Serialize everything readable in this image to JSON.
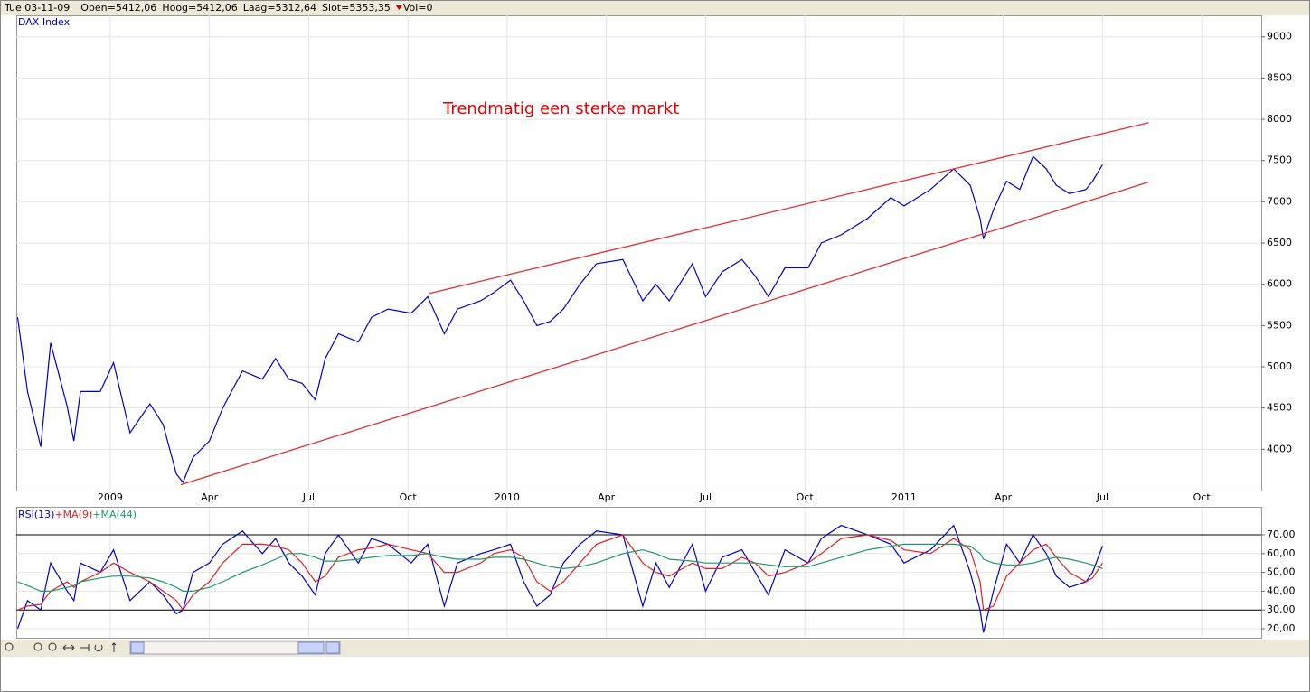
{
  "header": {
    "date": "Tue 03-11-09",
    "open": "Open=5412,06",
    "high": "Hoog=5412,06",
    "low": "Laag=5312,64",
    "close": "Slot=5353,35",
    "volume": "Vol=0"
  },
  "chart_data": [
    {
      "type": "line",
      "annotation": "Trendmatig een sterke markt",
      "x": [
        -2.8,
        -2.5,
        -2.1,
        -1.8,
        -1.3,
        -1.1,
        -0.9,
        -0.3,
        0.1,
        0.6,
        1.2,
        1.6,
        2.0,
        2.2,
        2.5,
        3.0,
        3.4,
        4.0,
        4.6,
        5.0,
        5.4,
        5.8,
        6.2,
        6.5,
        6.9,
        7.5,
        7.9,
        8.4,
        9.1,
        9.6,
        10.1,
        10.5,
        11.2,
        11.6,
        12.1,
        12.5,
        12.9,
        13.3,
        13.7,
        14.2,
        14.7,
        15.5,
        16.1,
        16.5,
        16.9,
        17.6,
        18.0,
        18.5,
        19.1,
        19.5,
        19.9,
        20.4,
        21.1,
        21.5,
        22.1,
        22.9,
        23.6,
        24.0,
        24.8,
        25.5,
        26.0,
        26.3,
        26.4,
        26.7,
        27.1,
        27.5,
        27.9,
        28.3,
        28.6,
        29.0,
        29.5,
        29.7,
        30.0
      ],
      "series": [
        {
          "name": "DAX Index",
          "color": "#0000c8",
          "values": [
            5600,
            4700,
            4030,
            5290,
            4520,
            4100,
            4700,
            4700,
            5050,
            4200,
            4550,
            4300,
            3700,
            3600,
            3900,
            4100,
            4500,
            4950,
            4850,
            5100,
            4850,
            4800,
            4600,
            5100,
            5400,
            5300,
            5600,
            5700,
            5650,
            5850,
            5400,
            5700,
            5800,
            5900,
            6050,
            5800,
            5500,
            5550,
            5700,
            6000,
            6250,
            6300,
            5800,
            6000,
            5800,
            6250,
            5850,
            6150,
            6300,
            6100,
            5850,
            6200,
            6200,
            6500,
            6600,
            6800,
            7050,
            6950,
            7150,
            7400,
            7200,
            6800,
            6550,
            6900,
            7250,
            7150,
            7550,
            7400,
            7200,
            7100,
            7150,
            7250,
            7450
          ]
        }
      ],
      "trendlines": [
        {
          "color": "#e03030",
          "x": [
            9.65,
            31.4
          ],
          "y": [
            5890,
            7960
          ]
        },
        {
          "color": "#e03030",
          "x": [
            2.13,
            31.4
          ],
          "y": [
            3570,
            7240
          ]
        }
      ],
      "xlim": [
        -2.84,
        34.8
      ],
      "xticks": [
        {
          "value": 0,
          "label": "2009"
        },
        {
          "value": 3,
          "label": "Apr"
        },
        {
          "value": 6,
          "label": "Jul"
        },
        {
          "value": 9,
          "label": "Oct"
        },
        {
          "value": 12,
          "label": "2010"
        },
        {
          "value": 15,
          "label": "Apr"
        },
        {
          "value": 18,
          "label": "Jul"
        },
        {
          "value": 21,
          "label": "Oct"
        },
        {
          "value": 24,
          "label": "2011"
        },
        {
          "value": 27,
          "label": "Apr"
        },
        {
          "value": 30,
          "label": "Jul"
        },
        {
          "value": 33,
          "label": "Oct"
        }
      ],
      "ylim": [
        3500,
        9260
      ],
      "yticks": [
        4000,
        4500,
        5000,
        5500,
        6000,
        6500,
        7000,
        7500,
        8000,
        8500,
        9000
      ],
      "grid": true
    },
    {
      "type": "line",
      "series": [
        {
          "name": "RSI(13)",
          "color": "#0000c8",
          "values": [
            20,
            35,
            30,
            55,
            40,
            35,
            55,
            50,
            62,
            35,
            45,
            38,
            28,
            30,
            50,
            55,
            65,
            72,
            60,
            68,
            55,
            48,
            38,
            60,
            70,
            55,
            68,
            65,
            55,
            65,
            32,
            55,
            60,
            62,
            65,
            45,
            32,
            38,
            55,
            65,
            72,
            70,
            32,
            55,
            42,
            65,
            40,
            58,
            62,
            50,
            38,
            62,
            55,
            68,
            75,
            70,
            65,
            55,
            62,
            75,
            50,
            30,
            18,
            40,
            65,
            55,
            70,
            60,
            48,
            42,
            45,
            50,
            64
          ]
        },
        {
          "name": "+MA(9)",
          "color": "#e02020",
          "values": [
            30,
            32,
            33,
            40,
            45,
            42,
            45,
            50,
            55,
            50,
            45,
            40,
            35,
            30,
            38,
            45,
            55,
            65,
            65,
            64,
            62,
            55,
            45,
            48,
            58,
            62,
            63,
            65,
            62,
            60,
            50,
            50,
            55,
            60,
            62,
            58,
            45,
            40,
            45,
            55,
            65,
            70,
            55,
            50,
            48,
            55,
            52,
            52,
            58,
            55,
            48,
            50,
            55,
            60,
            68,
            70,
            67,
            62,
            60,
            68,
            62,
            45,
            30,
            32,
            48,
            55,
            62,
            65,
            58,
            50,
            45,
            47,
            55
          ]
        },
        {
          "name": "+MA(44)",
          "color": "#1a9a6a",
          "values": [
            45,
            43,
            40,
            40,
            42,
            43,
            45,
            47,
            48,
            48,
            47,
            45,
            42,
            40,
            40,
            42,
            45,
            50,
            54,
            57,
            60,
            60,
            58,
            56,
            56,
            57,
            58,
            59,
            59,
            60,
            58,
            57,
            57,
            58,
            58,
            57,
            55,
            53,
            52,
            53,
            55,
            60,
            62,
            60,
            57,
            56,
            55,
            55,
            55,
            55,
            54,
            53,
            53,
            55,
            58,
            62,
            64,
            65,
            65,
            65,
            64,
            60,
            57,
            55,
            54,
            54,
            55,
            57,
            58,
            57,
            55,
            54,
            52
          ]
        }
      ],
      "reference_lines": [
        70,
        30
      ],
      "ylim": [
        15.2,
        84.4
      ],
      "yticks": [
        {
          "value": 20,
          "label": "20,00"
        },
        {
          "value": 30,
          "label": "30,00"
        },
        {
          "value": 40,
          "label": "40,00"
        },
        {
          "value": 50,
          "label": "50,00"
        },
        {
          "value": 60,
          "label": "60,00"
        },
        {
          "value": 70,
          "label": "70,00"
        }
      ],
      "grid": true
    }
  ]
}
